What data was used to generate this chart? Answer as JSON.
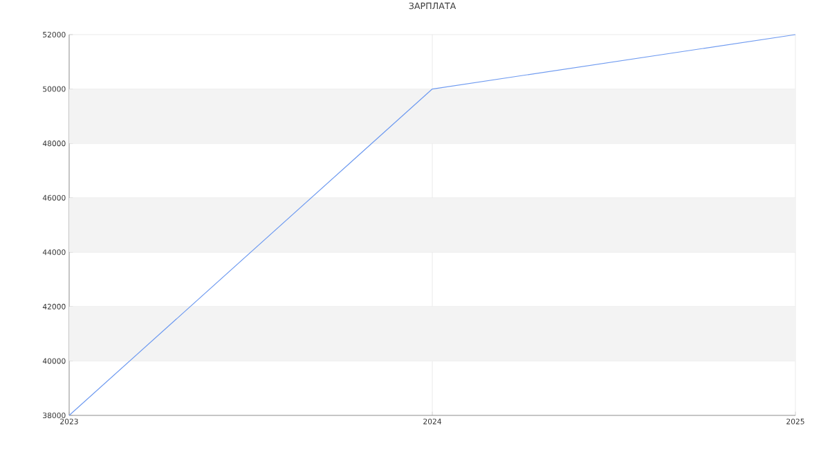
{
  "chart_data": {
    "type": "line",
    "title": "ЗАРПЛАТА",
    "categories": [
      "2023",
      "2024",
      "2025"
    ],
    "series": [
      {
        "color": "#6e9af0",
        "values": [
          38000,
          50000,
          52000
        ]
      }
    ],
    "ylim": [
      38000,
      52000
    ],
    "yticks": [
      38000,
      40000,
      42000,
      44000,
      46000,
      48000,
      50000,
      52000
    ],
    "grid": true,
    "bands": [
      {
        "axis": "y",
        "from": 40000,
        "to": 42000,
        "color": "#f3f3f3"
      },
      {
        "axis": "y",
        "from": 44000,
        "to": 46000,
        "color": "#f3f3f3"
      },
      {
        "axis": "y",
        "from": 48000,
        "to": 50000,
        "color": "#f3f3f3"
      }
    ]
  }
}
